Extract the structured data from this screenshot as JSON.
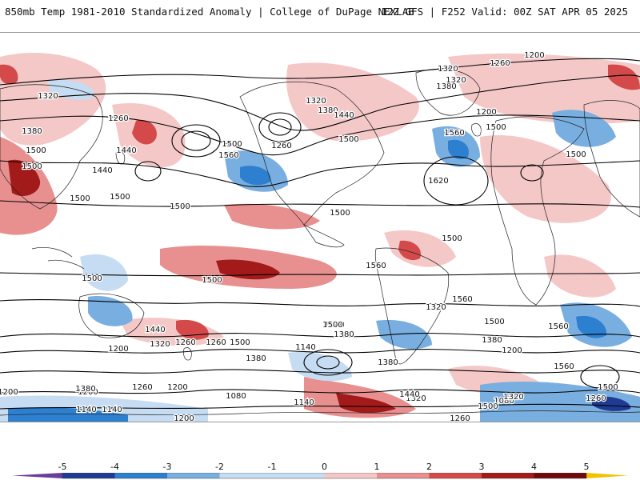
{
  "header": {
    "title_left": "850mb Temp 1981-2010 Standardized Anomaly | College of DuPage NEXLAB",
    "title_right": "12Z GFS | F252 Valid: 00Z SAT APR 05 2025"
  },
  "colors": {
    "neg5": "#6a3d9a",
    "neg4": "#1f3a93",
    "neg3": "#2d7fd0",
    "neg2": "#78aee0",
    "neg1": "#c6dcf2",
    "zero": "#ffffff",
    "pos1": "#f5c8c8",
    "pos2": "#e89090",
    "pos3": "#d44a4a",
    "pos4": "#a31a1a",
    "pos5": "#6e0a0a",
    "over5": "#f2c200"
  },
  "colorbar": {
    "ticks": [
      "-5",
      "-4",
      "-3",
      "-2",
      "-1",
      "0",
      "1",
      "2",
      "3",
      "4",
      "5"
    ]
  },
  "contour_labels": [
    "1200",
    "1260",
    "1320",
    "1380",
    "1320",
    "1200",
    "1320",
    "1380",
    "1260",
    "1320",
    "1500",
    "1380",
    "1440",
    "1500",
    "1260",
    "1500",
    "1560",
    "1440",
    "1500",
    "1560",
    "1620",
    "1500",
    "1440",
    "1500",
    "1500",
    "1500",
    "1500",
    "1500",
    "1500",
    "1500",
    "1560",
    "1560",
    "1500",
    "1440",
    "1560",
    "1500",
    "1320",
    "1260",
    "1500",
    "1380",
    "1500",
    "1380",
    "1200",
    "1440",
    "1320",
    "1260",
    "1140",
    "1200",
    "1080",
    "1260",
    "1140",
    "1200",
    "1380",
    "1080",
    "1140",
    "1200",
    "1140",
    "1320",
    "1380",
    "1200",
    "1260",
    "1200",
    "1260",
    "1500",
    "1380",
    "1320",
    "1440",
    "1500",
    "1560"
  ]
}
